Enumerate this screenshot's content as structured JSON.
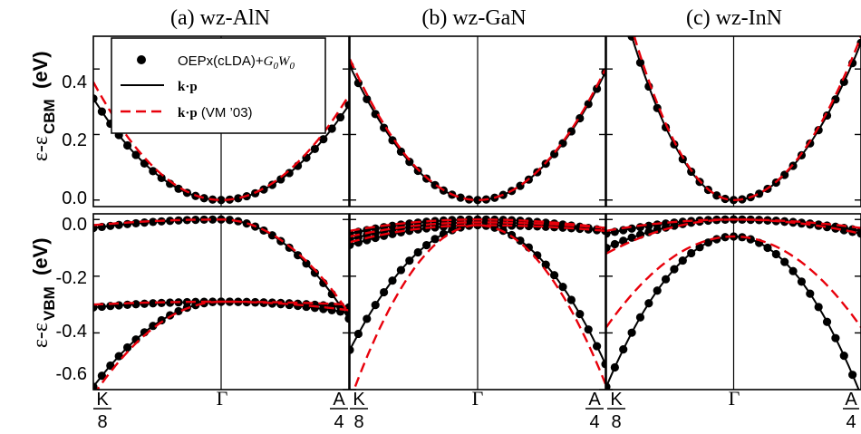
{
  "chart_data": {
    "type": "scatter",
    "description_panels": [
      {
        "title": "(a) wz-AlN",
        "cbm": {
          "ylim": [
            -0.02,
            0.5
          ],
          "x_range": [
            -1,
            1
          ],
          "dots": {
            "min": 0.0,
            "left_end": 0.31,
            "right_end": 0.29
          },
          "kp": {
            "min": 0.0,
            "left_end": 0.31,
            "right_end": 0.29
          },
          "vm03": {
            "min": 0.0,
            "left_end": 0.36,
            "right_end": 0.32
          }
        },
        "vbm": {
          "ylim": [
            -0.6,
            0.02
          ],
          "bands": [
            {
              "series": "dots",
              "gamma": 0.0,
              "left": -0.03,
              "right": -0.35
            },
            {
              "series": "dots",
              "gamma": -0.29,
              "left": -0.31,
              "right": -0.33
            },
            {
              "series": "dots",
              "gamma": -0.29,
              "left": -0.59,
              "right": -0.31
            },
            {
              "series": "kp",
              "gamma": 0.0,
              "left": -0.03,
              "right": -0.35
            },
            {
              "series": "kp",
              "gamma": -0.29,
              "left": -0.31,
              "right": -0.33
            },
            {
              "series": "kp",
              "gamma": -0.29,
              "left": -0.59,
              "right": -0.31
            },
            {
              "series": "vm03",
              "gamma": 0.0,
              "left": -0.02,
              "right": -0.33
            },
            {
              "series": "vm03",
              "gamma": -0.29,
              "left": -0.3,
              "right": -0.32
            },
            {
              "series": "vm03",
              "gamma": -0.29,
              "left": -0.62,
              "right": -0.3
            }
          ]
        }
      },
      {
        "title": "(b) wz-GaN",
        "cbm": {
          "ylim": [
            -0.02,
            0.5
          ],
          "x_range": [
            -1,
            1
          ],
          "dots": {
            "min": 0.0,
            "left_end": 0.41,
            "right_end": 0.39
          },
          "kp": {
            "min": 0.0,
            "left_end": 0.41,
            "right_end": 0.39
          },
          "vm03": {
            "min": 0.0,
            "left_end": 0.43,
            "right_end": 0.4
          }
        },
        "vbm": {
          "ylim": [
            -0.6,
            0.02
          ],
          "bands": [
            {
              "series": "dots",
              "gamma": 0.0,
              "left": -0.05,
              "right": -0.04
            },
            {
              "series": "dots",
              "gamma": -0.01,
              "left": -0.07,
              "right": -0.04
            },
            {
              "series": "dots",
              "gamma": -0.02,
              "left": -0.09,
              "right": -0.04
            },
            {
              "series": "dots",
              "gamma": -0.02,
              "left": -0.46,
              "right": -0.51
            },
            {
              "series": "kp",
              "gamma": 0.0,
              "left": -0.05,
              "right": -0.04
            },
            {
              "series": "kp",
              "gamma": -0.01,
              "left": -0.07,
              "right": -0.04
            },
            {
              "series": "kp",
              "gamma": -0.02,
              "left": -0.09,
              "right": -0.04
            },
            {
              "series": "kp",
              "gamma": -0.02,
              "left": -0.46,
              "right": -0.51
            },
            {
              "series": "vm03",
              "gamma": 0.0,
              "left": -0.04,
              "right": -0.03
            },
            {
              "series": "vm03",
              "gamma": -0.01,
              "left": -0.06,
              "right": -0.03
            },
            {
              "series": "vm03",
              "gamma": -0.02,
              "left": -0.08,
              "right": -0.04
            },
            {
              "series": "vm03",
              "gamma": -0.02,
              "left": -0.64,
              "right": -0.58
            }
          ]
        }
      },
      {
        "title": "(c) wz-InN",
        "cbm": {
          "ylim": [
            -0.02,
            0.5
          ],
          "x_range": [
            -1,
            1
          ],
          "dots": {
            "min": 0.0,
            "left_end": 0.78,
            "right_end": 0.48
          },
          "kp": {
            "min": 0.0,
            "left_end": 0.78,
            "right_end": 0.48
          },
          "vm03": {
            "min": 0.0,
            "left_end": 0.82,
            "right_end": 0.5
          }
        },
        "vbm": {
          "ylim": [
            -0.6,
            0.02
          ],
          "bands": [
            {
              "series": "dots",
              "gamma": 0.0,
              "left": -0.05,
              "right": -0.04
            },
            {
              "series": "dots",
              "gamma": 0.0,
              "left": -0.1,
              "right": -0.05
            },
            {
              "series": "dots",
              "gamma": -0.06,
              "left": -0.59,
              "right": -0.62
            },
            {
              "series": "kp",
              "gamma": 0.0,
              "left": -0.05,
              "right": -0.04
            },
            {
              "series": "kp",
              "gamma": 0.0,
              "left": -0.1,
              "right": -0.05
            },
            {
              "series": "kp",
              "gamma": -0.06,
              "left": -0.59,
              "right": -0.62
            },
            {
              "series": "vm03",
              "gamma": 0.0,
              "left": -0.04,
              "right": -0.03
            },
            {
              "series": "vm03",
              "gamma": 0.0,
              "left": -0.12,
              "right": -0.05
            },
            {
              "series": "vm03",
              "gamma": -0.06,
              "left": -0.38,
              "right": -0.38
            }
          ]
        }
      }
    ],
    "panels": [
      {
        "title": "(a) wz-AlN"
      },
      {
        "title": "(b) wz-GaN"
      },
      {
        "title": "(c) wz-InN"
      }
    ],
    "ylabel_top": "ε-ε",
    "ylabel_top_sub": "CBM",
    "ylabel_top_unit": "(eV)",
    "ylabel_bottom": "ε-ε",
    "ylabel_bottom_sub": "VBM",
    "ylabel_bottom_unit": "(eV)",
    "cbm_ticks": [
      "0.0",
      "0.2",
      "0.4"
    ],
    "vbm_ticks": [
      "0.0",
      "-0.2",
      "-0.4",
      "-0.6"
    ],
    "x_ticks": {
      "left_num": "K",
      "left_den": "8",
      "center": "Γ",
      "right_num": "A",
      "right_den": "4"
    },
    "legend": {
      "placement": "top-left",
      "entries": [
        {
          "key": "dots",
          "label": "OEPx(cLDA)+G0W0",
          "label_main": "OEPx(cLDA)+",
          "label_g": "G",
          "label_g_sub": "0",
          "label_w": "W",
          "label_w_sub": "0"
        },
        {
          "key": "kp",
          "label": "k·p"
        },
        {
          "key": "vm03",
          "label": "k·p (VM ’03)",
          "label_main": "k·p",
          "label_suffix": " (VM ’03)"
        }
      ]
    },
    "colors": {
      "dots": "#000000",
      "kp": "#000000",
      "vm03": "#e8000b"
    }
  }
}
